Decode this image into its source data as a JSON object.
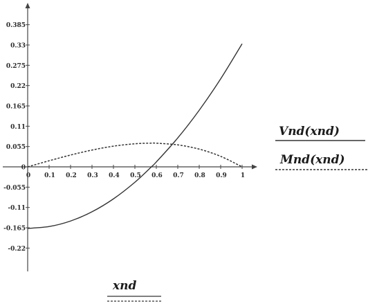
{
  "chart_data": {
    "type": "line",
    "x_axis": {
      "label": "xnd",
      "range": [
        0,
        1
      ],
      "ticks": [
        "0",
        "0.1",
        "0.2",
        "0.3",
        "0.4",
        "0.5",
        "0.6",
        "0.7",
        "0.8",
        "0.9",
        "1"
      ],
      "tick_values": [
        0,
        0.1,
        0.2,
        0.3,
        0.4,
        0.5,
        0.6,
        0.7,
        0.8,
        0.9,
        1
      ]
    },
    "y_axis": {
      "range": [
        -0.275,
        0.44
      ],
      "ticks": [
        "0.385",
        "0.33",
        "0.275",
        "0.22",
        "0.165",
        "0.11",
        "0.055",
        "0",
        "-0.055",
        "-0.11",
        "-0.165",
        "-0.22"
      ],
      "tick_values": [
        0.385,
        0.33,
        0.275,
        0.22,
        0.165,
        0.11,
        0.055,
        0,
        -0.055,
        -0.11,
        -0.165,
        -0.22
      ]
    },
    "grid": false,
    "legend_position": "right",
    "series": [
      {
        "name": "Vnd(xnd)",
        "style": "solid",
        "color": "#333333",
        "x": [
          0,
          0.1,
          0.2,
          0.3,
          0.4,
          0.5,
          0.577,
          0.6,
          0.7,
          0.8,
          0.9,
          1
        ],
        "y": [
          -0.1667,
          -0.1617,
          -0.1467,
          -0.1217,
          -0.0867,
          -0.0417,
          0,
          0.0133,
          0.0783,
          0.1533,
          0.2383,
          0.3333
        ]
      },
      {
        "name": "Mnd(xnd)",
        "style": "dashed",
        "color": "#333333",
        "x": [
          0,
          0.1,
          0.2,
          0.3,
          0.4,
          0.5,
          0.577,
          0.6,
          0.7,
          0.8,
          0.9,
          1
        ],
        "y": [
          0,
          0.0165,
          0.032,
          0.0455,
          0.056,
          0.0625,
          0.0642,
          0.064,
          0.0595,
          0.048,
          0.0285,
          0
        ]
      }
    ]
  }
}
